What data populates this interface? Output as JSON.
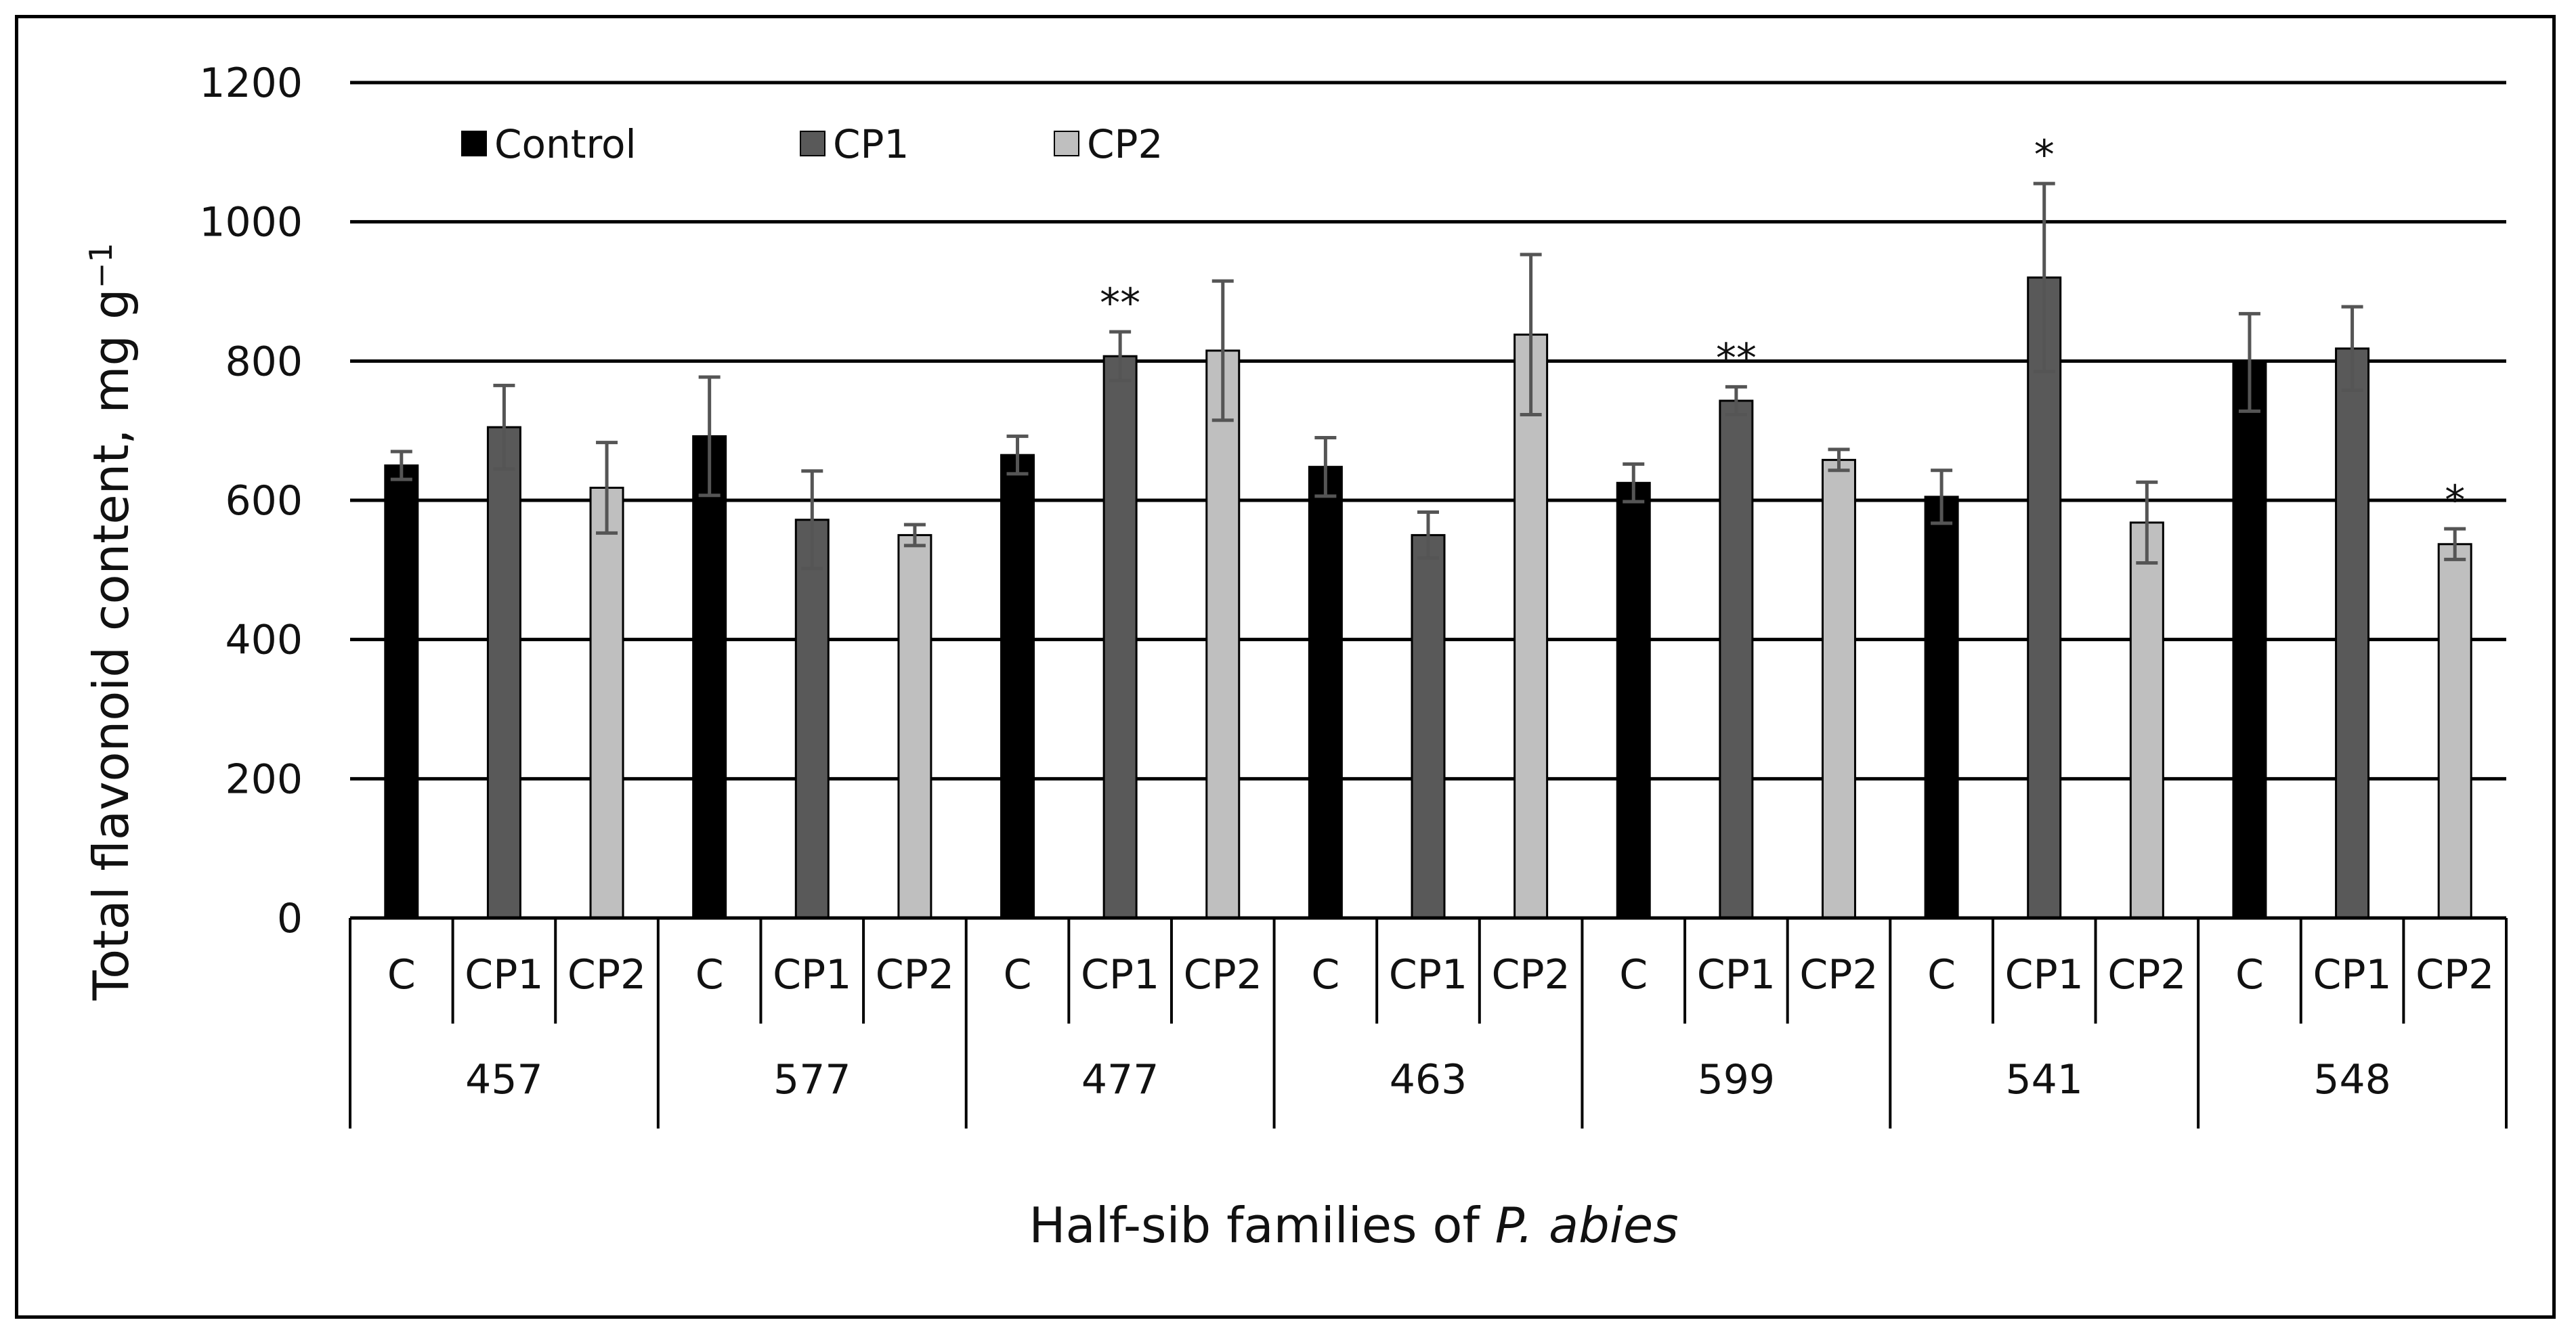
{
  "chart_data": {
    "type": "bar",
    "title": "",
    "ylabel_main": "Total flavonoid content, mg g",
    "ylabel_superscript": "−1",
    "xlabel_prefix": "Half-sib families of ",
    "xlabel_italic": "P. abies",
    "ylim": [
      0,
      1200
    ],
    "yticks": [
      0,
      200,
      400,
      600,
      800,
      1000,
      1200
    ],
    "grid": true,
    "legend_position": "top-left",
    "series": [
      {
        "name": "Control",
        "short": "C",
        "color": "#000000"
      },
      {
        "name": "CP1",
        "short": "CP1",
        "color": "#595959"
      },
      {
        "name": "CP2",
        "short": "CP2",
        "color": "#bfbfbf"
      }
    ],
    "groups": [
      {
        "family": "457",
        "bars": [
          {
            "label": "C",
            "value": 650,
            "error": 20,
            "sig": ""
          },
          {
            "label": "CP1",
            "value": 705,
            "error": 60,
            "sig": ""
          },
          {
            "label": "CP2",
            "value": 618,
            "error": 65,
            "sig": ""
          }
        ]
      },
      {
        "family": "577",
        "bars": [
          {
            "label": "C",
            "value": 692,
            "error": 85,
            "sig": ""
          },
          {
            "label": "CP1",
            "value": 572,
            "error": 70,
            "sig": ""
          },
          {
            "label": "CP2",
            "value": 550,
            "error": 15,
            "sig": ""
          }
        ]
      },
      {
        "family": "477",
        "bars": [
          {
            "label": "C",
            "value": 665,
            "error": 27,
            "sig": ""
          },
          {
            "label": "CP1",
            "value": 807,
            "error": 35,
            "sig": "**"
          },
          {
            "label": "CP2",
            "value": 815,
            "error": 100,
            "sig": ""
          }
        ]
      },
      {
        "family": "463",
        "bars": [
          {
            "label": "C",
            "value": 648,
            "error": 42,
            "sig": ""
          },
          {
            "label": "CP1",
            "value": 550,
            "error": 33,
            "sig": ""
          },
          {
            "label": "CP2",
            "value": 838,
            "error": 115,
            "sig": ""
          }
        ]
      },
      {
        "family": "599",
        "bars": [
          {
            "label": "C",
            "value": 625,
            "error": 27,
            "sig": ""
          },
          {
            "label": "CP1",
            "value": 743,
            "error": 20,
            "sig": "**"
          },
          {
            "label": "CP2",
            "value": 658,
            "error": 15,
            "sig": ""
          }
        ]
      },
      {
        "family": "541",
        "bars": [
          {
            "label": "C",
            "value": 605,
            "error": 38,
            "sig": ""
          },
          {
            "label": "CP1",
            "value": 920,
            "error": 135,
            "sig": "*"
          },
          {
            "label": "CP2",
            "value": 568,
            "error": 58,
            "sig": ""
          }
        ]
      },
      {
        "family": "548",
        "bars": [
          {
            "label": "C",
            "value": 798,
            "error": 70,
            "sig": ""
          },
          {
            "label": "CP1",
            "value": 818,
            "error": 60,
            "sig": ""
          },
          {
            "label": "CP2",
            "value": 537,
            "error": 22,
            "sig": "*"
          }
        ]
      }
    ]
  }
}
